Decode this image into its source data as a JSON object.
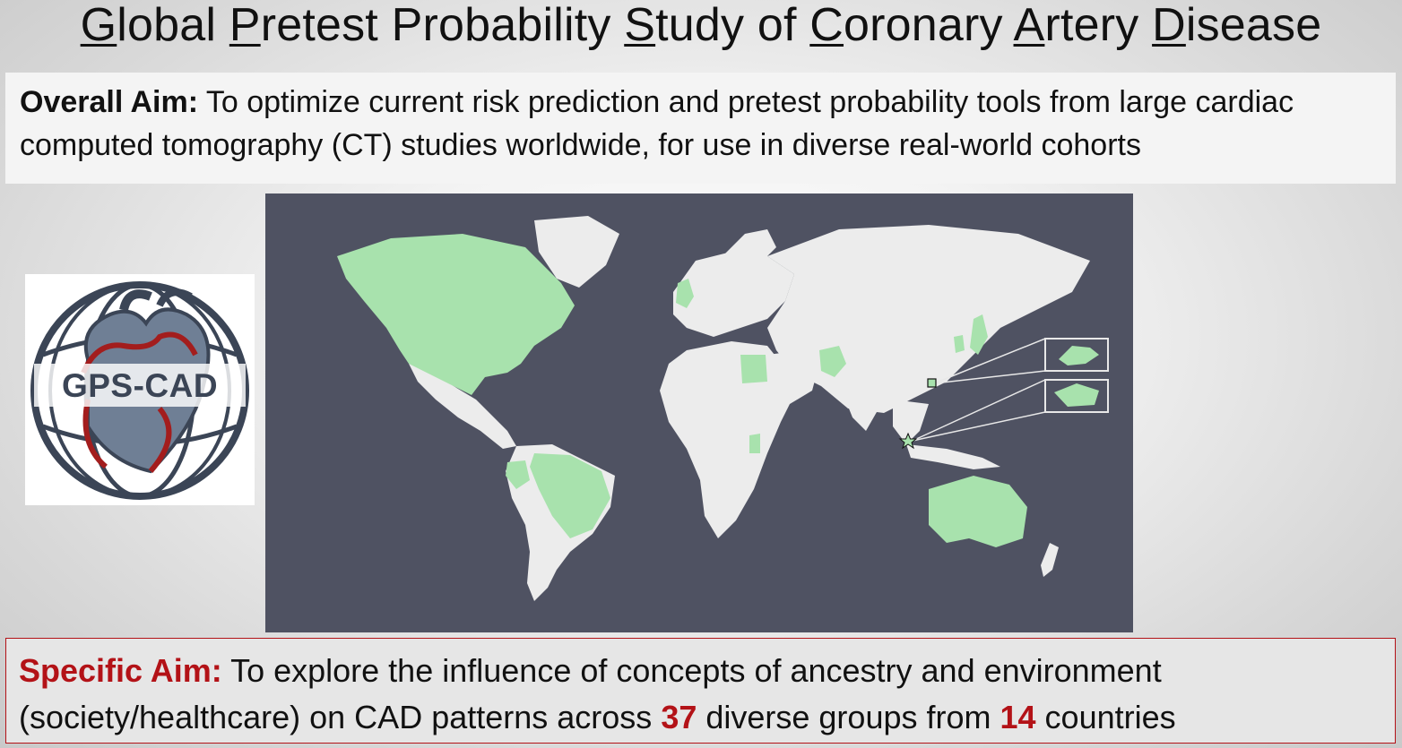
{
  "title": {
    "segments": [
      {
        "initial": "G",
        "rest": "lobal "
      },
      {
        "initial": "P",
        "rest": "retest Probability "
      },
      {
        "initial": "S",
        "rest": "tudy of "
      },
      {
        "initial": "C",
        "rest": "oronary "
      },
      {
        "initial": "A",
        "rest": "rtery "
      },
      {
        "initial": "D",
        "rest": "isease"
      }
    ]
  },
  "overall_aim": {
    "label": "Overall Aim:",
    "text": " To optimize current risk prediction and pretest probability tools from large cardiac computed tomography (CT) studies worldwide, for use in diverse real-world cohorts"
  },
  "logo": {
    "text": "GPS-CAD"
  },
  "map": {
    "ocean_color": "#4f5262",
    "land_color": "#ececec",
    "highlight_color": "#a8e2ad",
    "inset_markers": [
      "square-marker",
      "star-marker"
    ]
  },
  "specific_aim": {
    "label": "Specific Aim:",
    "text_1": " To explore the influence of concepts of ancestry and environment (society/healthcare) on CAD patterns across ",
    "groups": "37",
    "text_2": " diverse groups from ",
    "countries": "14",
    "text_3": " countries"
  }
}
